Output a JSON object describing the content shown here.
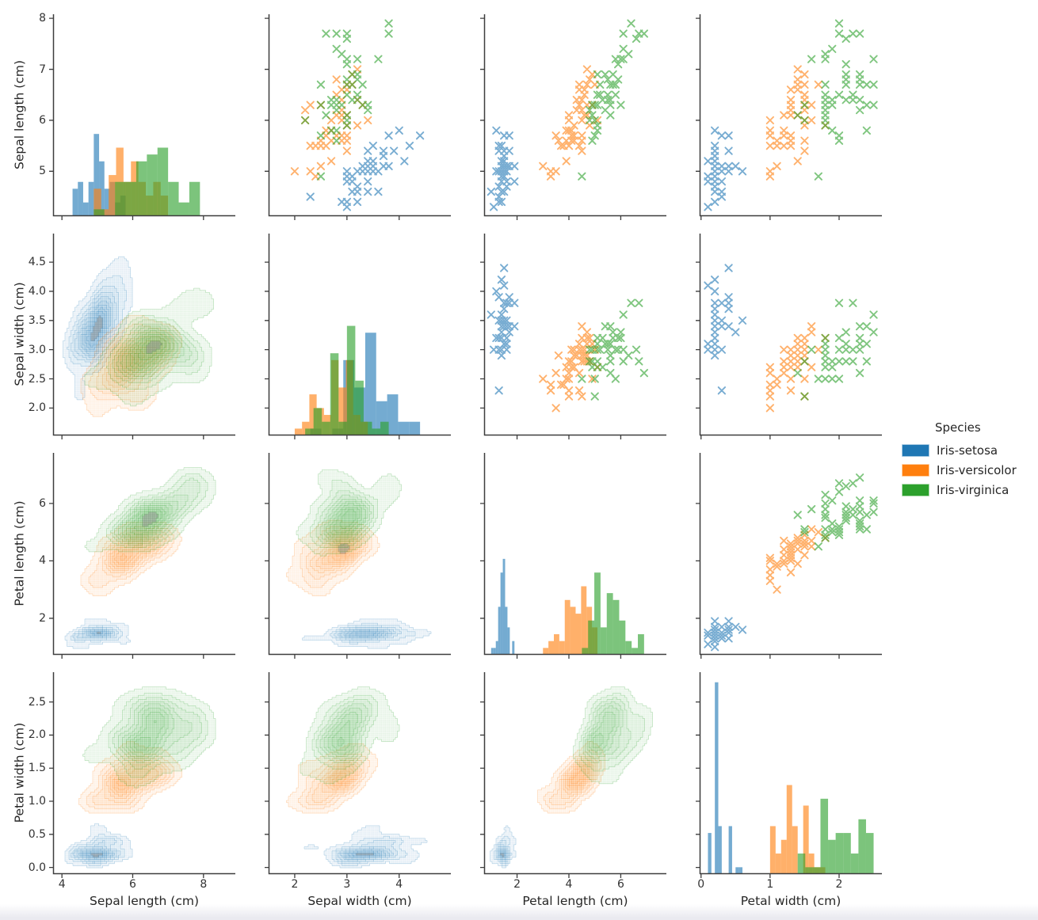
{
  "figure": {
    "kind": "iris pairplot (scatter-plot matrix)",
    "background": "#ffffff"
  },
  "chart_data": {
    "type": "scatter",
    "chart_kind": "pairplot-matrix",
    "description": "4x4 pair plot of the Iris dataset. Diagonal: overlaid per-species histograms. Upper triangle: scatter plots with x markers. Lower triangle: filled KDE density contours (common normalization across species).",
    "point_format": [
      "sepal_length_cm",
      "sepal_width_cm",
      "petal_length_cm",
      "petal_width_cm"
    ],
    "panels": {
      "diagonal": "histogram",
      "upper": "scatter-x-markers",
      "lower": "kde-filled-contours"
    },
    "variables": [
      {
        "key": "sepal_length",
        "label": "Sepal length (cm)",
        "xlim": [
          3.75,
          8.9
        ],
        "ylim": [
          4.12,
          8.08
        ],
        "xticks": [
          "4",
          "6",
          "8"
        ],
        "xtick_values": [
          4,
          6,
          8
        ],
        "yticks": [
          "5",
          "6",
          "7",
          "8"
        ],
        "ytick_values": [
          5,
          6,
          7,
          8
        ]
      },
      {
        "key": "sepal_width",
        "label": "Sepal width (cm)",
        "xlim": [
          1.5,
          4.99
        ],
        "ylim": [
          1.53,
          4.99
        ],
        "xticks": [
          "2",
          "3",
          "4"
        ],
        "xtick_values": [
          2,
          3,
          4
        ],
        "yticks": [
          "2.0",
          "2.5",
          "3.0",
          "3.5",
          "4.0",
          "4.5"
        ],
        "ytick_values": [
          2,
          2.5,
          3,
          3.5,
          4,
          4.5
        ]
      },
      {
        "key": "petal_length",
        "label": "Petal length (cm)",
        "xlim": [
          0.73,
          7.76
        ],
        "ylim": [
          0.73,
          7.76
        ],
        "xticks": [
          "2",
          "4",
          "6"
        ],
        "xtick_values": [
          2,
          4,
          6
        ],
        "yticks": [
          "2",
          "4",
          "6"
        ],
        "ytick_values": [
          2,
          4,
          6
        ]
      },
      {
        "key": "petal_width",
        "label": "Petal width (cm)",
        "xlim": [
          -0.02,
          2.62
        ],
        "ylim": [
          -0.1,
          2.95
        ],
        "xticks": [
          "0",
          "1",
          "2"
        ],
        "xtick_values": [
          0,
          1,
          2
        ],
        "yticks": [
          "0.0",
          "0.5",
          "1.0",
          "1.5",
          "2.0",
          "2.5"
        ],
        "ytick_values": [
          0,
          0.5,
          1,
          1.5,
          2,
          2.5
        ]
      }
    ],
    "legend": {
      "title": "Species",
      "position": "right",
      "entries": [
        {
          "label": "Iris-setosa",
          "color": "#1f77b4"
        },
        {
          "label": "Iris-versicolor",
          "color": "#ff7f0e"
        },
        {
          "label": "Iris-virginica",
          "color": "#2ca02c"
        }
      ]
    },
    "series": [
      {
        "name": "Iris-setosa",
        "color": "#1f77b4",
        "marker": "x",
        "points": [
          [
            5.1,
            3.5,
            1.4,
            0.2
          ],
          [
            4.9,
            3.0,
            1.4,
            0.2
          ],
          [
            4.7,
            3.2,
            1.3,
            0.2
          ],
          [
            4.6,
            3.1,
            1.5,
            0.2
          ],
          [
            5.0,
            3.6,
            1.4,
            0.2
          ],
          [
            5.4,
            3.9,
            1.7,
            0.4
          ],
          [
            4.6,
            3.4,
            1.4,
            0.3
          ],
          [
            5.0,
            3.4,
            1.5,
            0.2
          ],
          [
            4.4,
            2.9,
            1.4,
            0.2
          ],
          [
            4.9,
            3.1,
            1.5,
            0.1
          ],
          [
            5.4,
            3.7,
            1.5,
            0.2
          ],
          [
            4.8,
            3.4,
            1.6,
            0.2
          ],
          [
            4.8,
            3.0,
            1.4,
            0.1
          ],
          [
            4.3,
            3.0,
            1.1,
            0.1
          ],
          [
            5.8,
            4.0,
            1.2,
            0.2
          ],
          [
            5.7,
            4.4,
            1.5,
            0.4
          ],
          [
            5.4,
            3.9,
            1.3,
            0.4
          ],
          [
            5.1,
            3.5,
            1.4,
            0.3
          ],
          [
            5.7,
            3.8,
            1.7,
            0.3
          ],
          [
            5.1,
            3.8,
            1.5,
            0.3
          ],
          [
            5.4,
            3.4,
            1.7,
            0.2
          ],
          [
            5.1,
            3.7,
            1.5,
            0.4
          ],
          [
            4.6,
            3.6,
            1.0,
            0.2
          ],
          [
            5.1,
            3.3,
            1.7,
            0.5
          ],
          [
            4.8,
            3.4,
            1.9,
            0.2
          ],
          [
            5.0,
            3.0,
            1.6,
            0.2
          ],
          [
            5.0,
            3.4,
            1.6,
            0.4
          ],
          [
            5.2,
            3.5,
            1.5,
            0.2
          ],
          [
            5.2,
            3.4,
            1.4,
            0.2
          ],
          [
            4.7,
            3.2,
            1.6,
            0.2
          ],
          [
            4.8,
            3.1,
            1.6,
            0.2
          ],
          [
            5.4,
            3.4,
            1.5,
            0.4
          ],
          [
            5.2,
            4.1,
            1.5,
            0.1
          ],
          [
            5.5,
            4.2,
            1.4,
            0.2
          ],
          [
            4.9,
            3.1,
            1.5,
            0.1
          ],
          [
            5.0,
            3.2,
            1.2,
            0.2
          ],
          [
            5.5,
            3.5,
            1.3,
            0.2
          ],
          [
            4.9,
            3.1,
            1.5,
            0.1
          ],
          [
            4.4,
            3.0,
            1.3,
            0.2
          ],
          [
            5.1,
            3.4,
            1.5,
            0.2
          ],
          [
            5.0,
            3.5,
            1.3,
            0.3
          ],
          [
            4.5,
            2.3,
            1.3,
            0.3
          ],
          [
            4.4,
            3.2,
            1.3,
            0.2
          ],
          [
            5.0,
            3.5,
            1.6,
            0.6
          ],
          [
            5.1,
            3.8,
            1.9,
            0.4
          ],
          [
            4.8,
            3.0,
            1.4,
            0.3
          ],
          [
            5.1,
            3.8,
            1.6,
            0.2
          ],
          [
            4.6,
            3.2,
            1.4,
            0.2
          ],
          [
            5.3,
            3.7,
            1.5,
            0.2
          ],
          [
            5.0,
            3.3,
            1.4,
            0.2
          ]
        ]
      },
      {
        "name": "Iris-versicolor",
        "color": "#ff7f0e",
        "marker": "x",
        "points": [
          [
            7.0,
            3.2,
            4.7,
            1.4
          ],
          [
            6.4,
            3.2,
            4.5,
            1.5
          ],
          [
            6.9,
            3.1,
            4.9,
            1.5
          ],
          [
            5.5,
            2.3,
            4.0,
            1.3
          ],
          [
            6.5,
            2.8,
            4.6,
            1.5
          ],
          [
            5.7,
            2.8,
            4.5,
            1.3
          ],
          [
            6.3,
            3.3,
            4.7,
            1.6
          ],
          [
            4.9,
            2.4,
            3.3,
            1.0
          ],
          [
            6.6,
            2.9,
            4.6,
            1.3
          ],
          [
            5.2,
            2.7,
            3.9,
            1.4
          ],
          [
            5.0,
            2.0,
            3.5,
            1.0
          ],
          [
            5.9,
            3.0,
            4.2,
            1.5
          ],
          [
            6.0,
            2.2,
            4.0,
            1.0
          ],
          [
            6.1,
            2.9,
            4.7,
            1.4
          ],
          [
            5.6,
            2.9,
            3.6,
            1.3
          ],
          [
            6.7,
            3.1,
            4.4,
            1.4
          ],
          [
            5.6,
            3.0,
            4.5,
            1.5
          ],
          [
            5.8,
            2.7,
            4.1,
            1.0
          ],
          [
            6.2,
            2.2,
            4.5,
            1.5
          ],
          [
            5.6,
            2.5,
            3.9,
            1.1
          ],
          [
            5.9,
            3.2,
            4.8,
            1.8
          ],
          [
            6.1,
            2.8,
            4.0,
            1.3
          ],
          [
            6.3,
            2.5,
            4.9,
            1.5
          ],
          [
            6.1,
            2.8,
            4.7,
            1.2
          ],
          [
            6.4,
            2.9,
            4.3,
            1.3
          ],
          [
            6.6,
            3.0,
            4.4,
            1.4
          ],
          [
            6.8,
            2.8,
            4.8,
            1.4
          ],
          [
            6.7,
            3.0,
            5.0,
            1.7
          ],
          [
            6.0,
            2.9,
            4.5,
            1.5
          ],
          [
            5.7,
            2.6,
            3.5,
            1.0
          ],
          [
            5.5,
            2.4,
            3.8,
            1.1
          ],
          [
            5.5,
            2.4,
            3.7,
            1.0
          ],
          [
            5.8,
            2.7,
            3.9,
            1.2
          ],
          [
            6.0,
            2.7,
            5.1,
            1.6
          ],
          [
            5.4,
            3.0,
            4.5,
            1.5
          ],
          [
            6.0,
            3.4,
            4.5,
            1.6
          ],
          [
            6.7,
            3.1,
            4.7,
            1.5
          ],
          [
            6.3,
            2.3,
            4.4,
            1.3
          ],
          [
            5.6,
            3.0,
            4.1,
            1.3
          ],
          [
            5.5,
            2.5,
            4.0,
            1.3
          ],
          [
            5.5,
            2.6,
            4.4,
            1.2
          ],
          [
            6.1,
            3.0,
            4.6,
            1.4
          ],
          [
            5.8,
            2.6,
            4.0,
            1.2
          ],
          [
            5.0,
            2.3,
            3.3,
            1.0
          ],
          [
            5.6,
            2.7,
            4.2,
            1.3
          ],
          [
            5.7,
            3.0,
            4.2,
            1.2
          ],
          [
            5.7,
            2.9,
            4.2,
            1.3
          ],
          [
            6.2,
            2.9,
            4.3,
            1.3
          ],
          [
            5.1,
            2.5,
            3.0,
            1.1
          ],
          [
            5.7,
            2.8,
            4.1,
            1.3
          ]
        ]
      },
      {
        "name": "Iris-virginica",
        "color": "#2ca02c",
        "marker": "x",
        "points": [
          [
            6.3,
            3.3,
            6.0,
            2.5
          ],
          [
            5.8,
            2.7,
            5.1,
            1.9
          ],
          [
            7.1,
            3.0,
            5.9,
            2.1
          ],
          [
            6.3,
            2.9,
            5.6,
            1.8
          ],
          [
            6.5,
            3.0,
            5.8,
            2.2
          ],
          [
            7.6,
            3.0,
            6.6,
            2.1
          ],
          [
            4.9,
            2.5,
            4.5,
            1.7
          ],
          [
            7.3,
            2.9,
            6.3,
            1.8
          ],
          [
            6.7,
            2.5,
            5.8,
            1.8
          ],
          [
            7.2,
            3.6,
            6.1,
            2.5
          ],
          [
            6.5,
            3.2,
            5.1,
            2.0
          ],
          [
            6.4,
            2.7,
            5.3,
            1.9
          ],
          [
            6.8,
            3.0,
            5.5,
            2.1
          ],
          [
            5.7,
            2.5,
            5.0,
            2.0
          ],
          [
            5.8,
            2.8,
            5.1,
            2.4
          ],
          [
            6.4,
            3.2,
            5.3,
            2.3
          ],
          [
            6.5,
            3.0,
            5.5,
            1.8
          ],
          [
            7.7,
            3.8,
            6.7,
            2.2
          ],
          [
            7.7,
            2.6,
            6.9,
            2.3
          ],
          [
            6.0,
            2.2,
            5.0,
            1.5
          ],
          [
            6.9,
            3.2,
            5.7,
            2.3
          ],
          [
            5.6,
            2.8,
            4.9,
            2.0
          ],
          [
            7.7,
            2.8,
            6.7,
            2.0
          ],
          [
            6.3,
            2.7,
            4.9,
            1.8
          ],
          [
            6.7,
            3.3,
            5.7,
            2.1
          ],
          [
            7.2,
            3.2,
            6.0,
            1.8
          ],
          [
            6.2,
            2.8,
            4.8,
            1.8
          ],
          [
            6.1,
            3.0,
            4.9,
            1.8
          ],
          [
            6.4,
            2.8,
            5.6,
            2.1
          ],
          [
            7.2,
            3.0,
            5.8,
            1.6
          ],
          [
            7.4,
            2.8,
            6.1,
            1.9
          ],
          [
            7.9,
            3.8,
            6.4,
            2.0
          ],
          [
            6.4,
            2.8,
            5.6,
            2.2
          ],
          [
            6.3,
            2.8,
            5.1,
            1.5
          ],
          [
            6.1,
            2.6,
            5.6,
            1.4
          ],
          [
            7.7,
            3.0,
            6.1,
            2.3
          ],
          [
            6.3,
            3.4,
            5.6,
            2.4
          ],
          [
            6.4,
            3.1,
            5.5,
            1.8
          ],
          [
            6.0,
            3.0,
            4.8,
            1.8
          ],
          [
            6.9,
            3.1,
            5.4,
            2.1
          ],
          [
            6.7,
            3.1,
            5.6,
            2.4
          ],
          [
            6.9,
            3.1,
            5.1,
            2.3
          ],
          [
            5.8,
            2.7,
            5.1,
            1.9
          ],
          [
            6.8,
            3.2,
            5.9,
            2.3
          ],
          [
            6.7,
            3.3,
            5.7,
            2.5
          ],
          [
            6.7,
            3.0,
            5.2,
            2.3
          ],
          [
            6.3,
            2.5,
            5.0,
            1.9
          ],
          [
            6.5,
            3.0,
            5.2,
            2.0
          ],
          [
            6.2,
            3.4,
            5.4,
            2.3
          ],
          [
            5.9,
            3.0,
            5.1,
            1.8
          ]
        ]
      }
    ]
  }
}
